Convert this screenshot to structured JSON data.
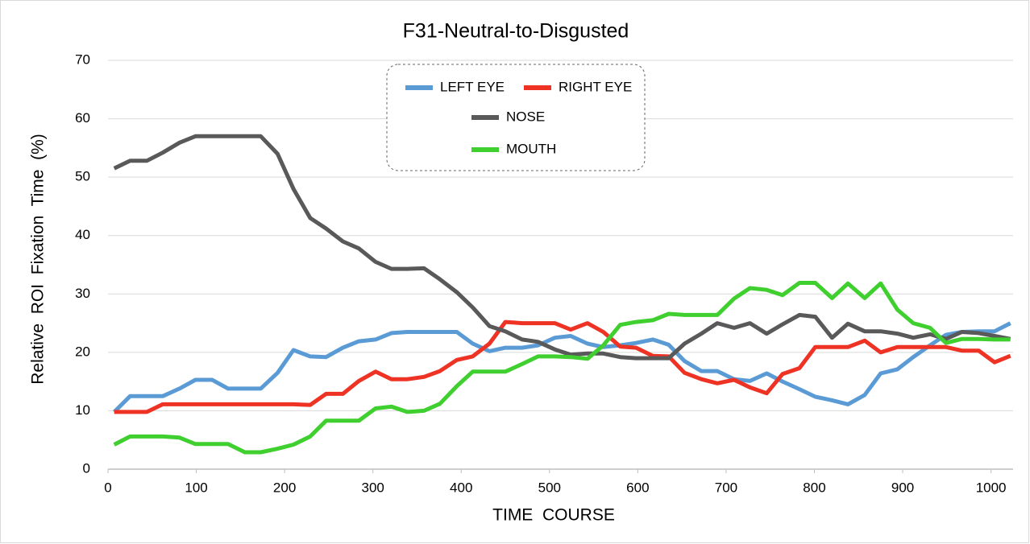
{
  "chart_data": {
    "type": "line",
    "title": "F31-Neutral-to-Disgusted",
    "x_label": "TIME  COURSE",
    "y_label": "Relative  ROI  Fixation  Time  (%)",
    "x": [
      7,
      25,
      44,
      62,
      81,
      99,
      118,
      136,
      155,
      173,
      192,
      210,
      229,
      247,
      266,
      284,
      303,
      321,
      339,
      358,
      376,
      395,
      413,
      432,
      450,
      469,
      487,
      506,
      524,
      543,
      561,
      580,
      598,
      617,
      635,
      653,
      672,
      690,
      709,
      727,
      746,
      764,
      783,
      801,
      820,
      838,
      857,
      875,
      894,
      912,
      931,
      949,
      967,
      986,
      1004,
      1022
    ],
    "series": [
      {
        "name": "LEFT EYE",
        "color": "#5b9bd5",
        "values": [
          9.8,
          12.5,
          12.5,
          12.5,
          13.8,
          15.3,
          15.3,
          13.8,
          13.8,
          13.8,
          16.5,
          20.4,
          19.3,
          19.2,
          20.8,
          21.9,
          22.2,
          23.3,
          23.5,
          23.5,
          23.5,
          23.5,
          21.5,
          20.2,
          20.8,
          20.8,
          21.2,
          22.5,
          22.8,
          21.5,
          20.9,
          21.2,
          21.6,
          22.2,
          21.3,
          18.5,
          16.8,
          16.8,
          15.4,
          15.1,
          16.4,
          15,
          13.7,
          12.4,
          11.8,
          11.1,
          12.7,
          16.4,
          17.1,
          19.2,
          21.2,
          23,
          23.5,
          23.6,
          23.6,
          25
        ]
      },
      {
        "name": "RIGHT EYE",
        "color": "#ee3224",
        "values": [
          9.8,
          9.8,
          9.8,
          11.1,
          11.1,
          11.1,
          11.1,
          11.1,
          11.1,
          11.1,
          11.1,
          11.1,
          11,
          12.9,
          12.9,
          15.1,
          16.7,
          15.4,
          15.4,
          15.8,
          16.8,
          18.7,
          19.3,
          21.5,
          25.2,
          25,
          25,
          25,
          23.9,
          25,
          23.5,
          21,
          20.8,
          19.4,
          19.3,
          16.5,
          15.4,
          14.7,
          15.3,
          14,
          13,
          16.3,
          17.3,
          20.9,
          20.9,
          20.9,
          22,
          20,
          20.9,
          20.9,
          20.9,
          20.9,
          20.3,
          20.3,
          18.3,
          19.4
        ]
      },
      {
        "name": "NOSE",
        "color": "#595959",
        "values": [
          51.5,
          52.8,
          52.8,
          54.2,
          55.9,
          57,
          57,
          57,
          57,
          57,
          54,
          48,
          43,
          41.2,
          39,
          37.8,
          35.5,
          34.3,
          34.3,
          34.4,
          32.5,
          30.3,
          27.7,
          24.5,
          23.6,
          22.2,
          21.8,
          20.5,
          19.6,
          19.8,
          19.8,
          19.2,
          19,
          19,
          19,
          21.5,
          23.2,
          25,
          24.2,
          25,
          23.2,
          24.8,
          26.4,
          26.1,
          22.5,
          24.9,
          23.6,
          23.6,
          23.2,
          22.5,
          23.1,
          22.3,
          23.5,
          23.3,
          22.8,
          22.3
        ]
      },
      {
        "name": "MOUTH",
        "color": "#3fcf2e",
        "values": [
          4.2,
          5.6,
          5.6,
          5.6,
          5.4,
          4.3,
          4.3,
          4.3,
          2.9,
          2.9,
          3.5,
          4.2,
          5.6,
          8.3,
          8.3,
          8.3,
          10.4,
          10.7,
          9.8,
          10,
          11.2,
          14.2,
          16.7,
          16.7,
          16.7,
          18,
          19.3,
          19.3,
          19.2,
          18.9,
          21.2,
          24.7,
          25.2,
          25.5,
          26.6,
          26.4,
          26.4,
          26.4,
          29.2,
          31,
          30.7,
          29.8,
          31.9,
          31.9,
          29.3,
          31.8,
          29.3,
          31.8,
          27.3,
          25,
          24.2,
          21.6,
          22.3,
          22.3,
          22.2,
          22.2
        ]
      }
    ],
    "xlim": [
      0,
      1025
    ],
    "ylim": [
      0,
      70
    ],
    "xticks": [
      0,
      100,
      200,
      300,
      400,
      500,
      600,
      700,
      800,
      900,
      1000
    ],
    "yticks": [
      0,
      10,
      20,
      30,
      40,
      50,
      60,
      70
    ],
    "grid": true
  }
}
